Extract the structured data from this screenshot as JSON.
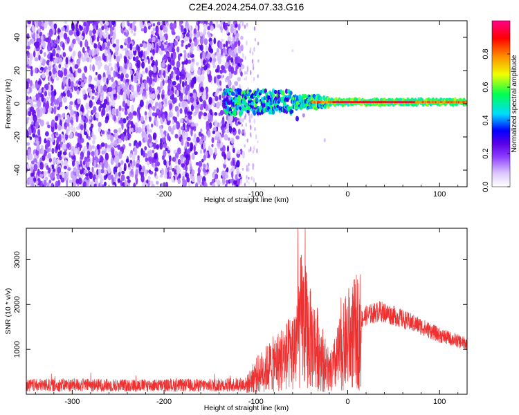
{
  "title": "C2E4.2024.254.07.33.G16",
  "chart_data": [
    {
      "type": "heatmap",
      "name": "spectrogram",
      "xlabel": "Height of straight line (km)",
      "ylabel": "Frequency (Hz)",
      "xlim": [
        -350,
        130
      ],
      "ylim": [
        -50,
        50
      ],
      "xticks": [
        -300,
        -200,
        -100,
        0,
        100
      ],
      "yticks": [
        -40,
        -20,
        0,
        20,
        40
      ],
      "noise_region_x": [
        -350,
        -115
      ],
      "signal_start_x": -135,
      "signal_frequency_hz": 1,
      "colorbar": {
        "label": "Normalized spectral amplitude",
        "range": [
          0,
          1
        ],
        "ticks": [
          "0.0",
          "0.2",
          "0.4",
          "0.6",
          "0.8"
        ],
        "colors": [
          "#ffffff",
          "#cc99ff",
          "#8000ff",
          "#0000ff",
          "#00ffff",
          "#00ff40",
          "#ffff00",
          "#ff8000",
          "#ff0000",
          "#ff0080"
        ]
      }
    },
    {
      "type": "line",
      "name": "snr",
      "xlabel": "Height of straight line (km)",
      "ylabel": "SNR (10 * v/v)",
      "xlim": [
        -350,
        130
      ],
      "ylim": [
        0,
        3700
      ],
      "xticks": [
        -300,
        -200,
        -100,
        0,
        100
      ],
      "yticks": [
        1000,
        2000,
        3000
      ],
      "color": "#ee3030",
      "series": [
        {
          "name": "SNR",
          "x": [
            -350,
            -300,
            -250,
            -200,
            -150,
            -110,
            -100,
            -80,
            -60,
            -50,
            -40,
            -30,
            -20,
            0,
            20,
            35,
            50,
            80,
            100,
            130
          ],
          "y": [
            220,
            230,
            220,
            220,
            220,
            250,
            500,
            800,
            1100,
            2000,
            1400,
            1100,
            500,
            1450,
            1800,
            1900,
            1800,
            1550,
            1350,
            1150
          ]
        }
      ]
    }
  ]
}
